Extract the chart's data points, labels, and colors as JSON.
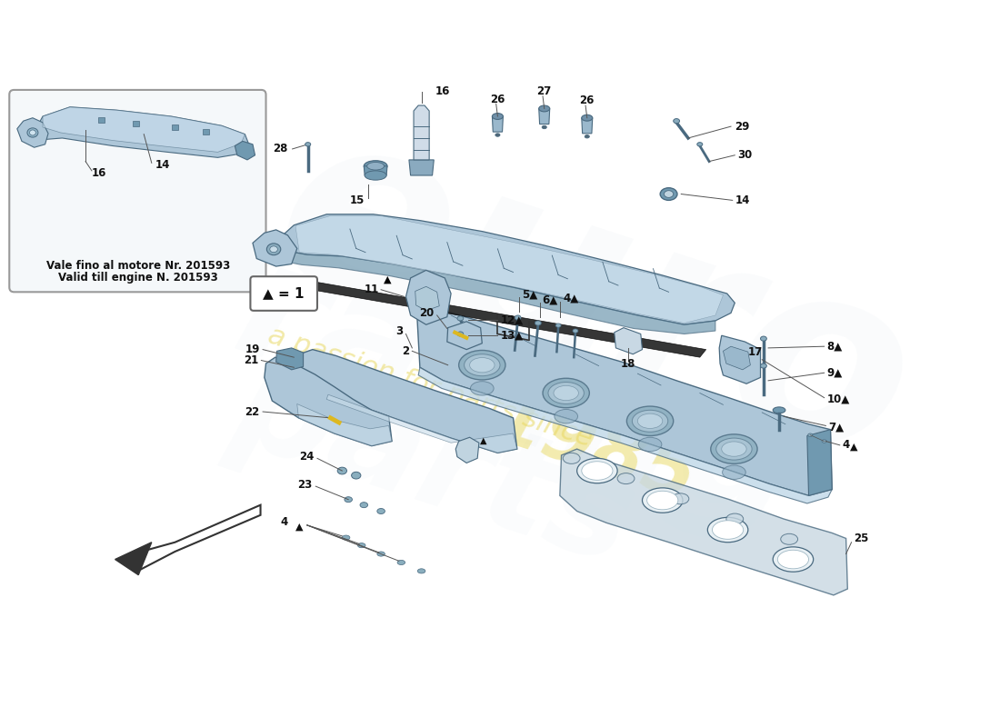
{
  "bg": "#ffffff",
  "lc": "#adc6d8",
  "dc": "#7099b0",
  "oc": "#4a6a80",
  "wm_blue": "#c8d8e4",
  "wm_yellow": "#e8d860",
  "inset_text1": "Vale fino al motore Nr. 201593",
  "inset_text2": "Valid till engine N. 201593",
  "legend": "▲ = 1",
  "label_fs": 9,
  "bold_labels": true
}
